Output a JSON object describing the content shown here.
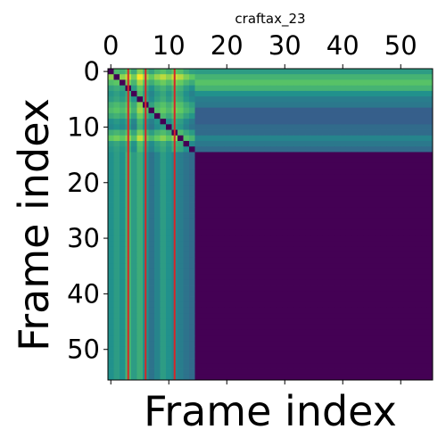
{
  "chart_data": {
    "type": "heatmap",
    "title": "craftax_23",
    "xlabel": "Frame index",
    "ylabel": "Frame index",
    "n_frames": 56,
    "x_ticks": [
      0,
      10,
      20,
      30,
      40,
      50
    ],
    "y_ticks": [
      0,
      10,
      20,
      30,
      40,
      50
    ],
    "x_axis_position": "top",
    "xlim": [
      -0.5,
      55.5
    ],
    "ylim": [
      55.5,
      -0.5
    ],
    "colormap": "viridis",
    "value_range": [
      0,
      1
    ],
    "grid": false,
    "active_frames": 15,
    "diagonal_value": 0,
    "background_value": 0,
    "column_profile": [
      0.55,
      0.62,
      0.55,
      0.7,
      0.48,
      0.85,
      0.6,
      0.42,
      0.58,
      0.68,
      0.55,
      0.72,
      0.66,
      0.5,
      0.4
    ],
    "row_profile": [
      0.62,
      0.95,
      0.72,
      0.5,
      0.4,
      0.45,
      0.62,
      0.7,
      0.55,
      0.35,
      0.3,
      0.58,
      0.8,
      0.45,
      0.4
    ],
    "right_band_by_row": [
      0.55,
      0.65,
      0.72,
      0.65,
      0.5,
      0.42,
      0.4,
      0.3,
      0.3,
      0.3,
      0.35,
      0.35,
      0.45,
      0.4,
      0.35
    ],
    "bottom_band_by_col": [
      0.5,
      0.55,
      0.5,
      0.65,
      0.55,
      0.62,
      0.5,
      0.38,
      0.45,
      0.55,
      0.5,
      0.45,
      0.42,
      0.38,
      0.35
    ],
    "vertical_lines": [
      3,
      6,
      11
    ],
    "line_color": "#d62728"
  }
}
